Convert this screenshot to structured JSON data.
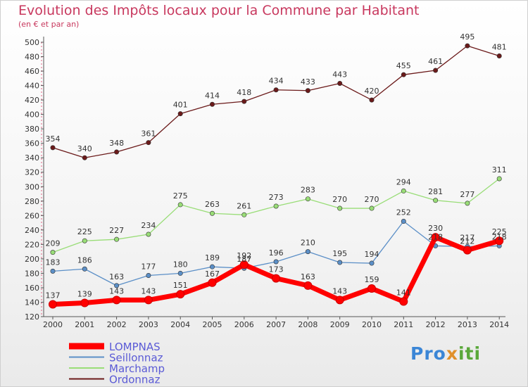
{
  "title": "Evolution des Impôts locaux pour la Commune par Habitant",
  "subtitle": "(en € et par an)",
  "logo": {
    "p1": "Pro",
    "p2": "x",
    "p3": "iti"
  },
  "chart_data": {
    "type": "line",
    "x": [
      "2000",
      "2001",
      "2002",
      "2003",
      "2004",
      "2005",
      "2006",
      "2007",
      "2008",
      "2009",
      "2010",
      "2011",
      "2012",
      "2013",
      "2014"
    ],
    "ylim": [
      120,
      500
    ],
    "yticks": [
      120,
      140,
      160,
      180,
      200,
      220,
      240,
      260,
      280,
      300,
      320,
      340,
      360,
      380,
      400,
      420,
      440,
      460,
      480,
      500
    ],
    "grid": false,
    "legend_position": "bottom-left",
    "series": [
      {
        "name": "LOMPNAS",
        "color": "#ff0000",
        "values": [
          137,
          139,
          143,
          143,
          151,
          167,
          192,
          173,
          163,
          143,
          159,
          141,
          230,
          212,
          225
        ]
      },
      {
        "name": "Seillonnaz",
        "color": "#5b8fc7",
        "values": [
          183,
          186,
          163,
          177,
          180,
          189,
          187,
          196,
          210,
          195,
          194,
          252,
          218,
          217,
          218
        ]
      },
      {
        "name": "Marchamp",
        "color": "#99dd77",
        "values": [
          209,
          225,
          227,
          234,
          275,
          263,
          261,
          273,
          283,
          270,
          270,
          294,
          281,
          277,
          311
        ]
      },
      {
        "name": "Ordonnaz",
        "color": "#6b1a1a",
        "values": [
          354,
          340,
          348,
          361,
          401,
          414,
          418,
          434,
          433,
          443,
          420,
          455,
          461,
          495,
          481
        ]
      }
    ]
  }
}
